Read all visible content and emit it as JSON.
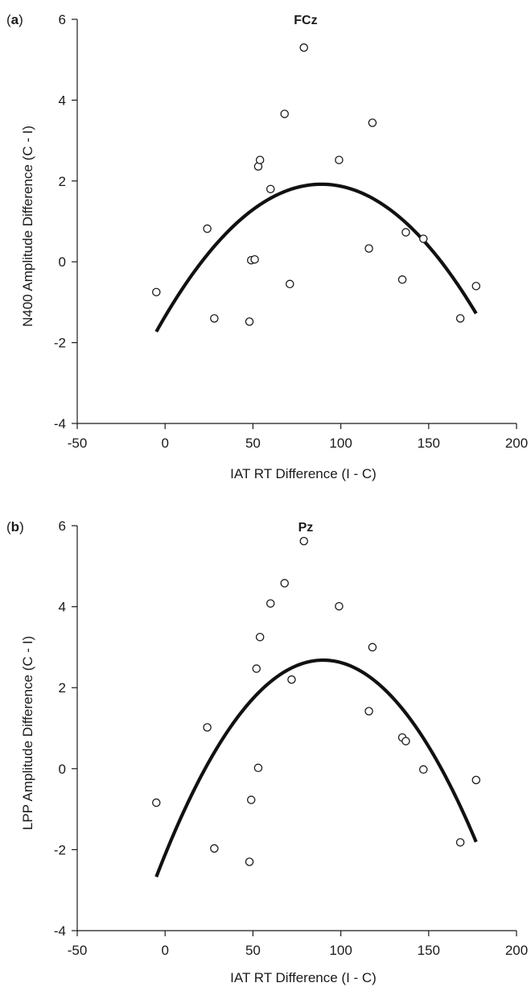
{
  "chart_data": [
    {
      "type": "scatter",
      "panel_label_prefix": "(",
      "panel_letter": "a",
      "panel_label_suffix": ")",
      "title": "FCz",
      "xlabel": "IAT RT Difference (I - C)",
      "ylabel": "N400 Amplitude Difference (C - I)",
      "xlim": [
        -50,
        200
      ],
      "ylim": [
        -4,
        6
      ],
      "xticks": [
        "-50",
        "0",
        "50",
        "100",
        "150",
        "200"
      ],
      "yticks": [
        "-4",
        "-2",
        "0",
        "2",
        "4",
        "6"
      ],
      "grid": false,
      "points": [
        {
          "x": -5,
          "y": -0.75
        },
        {
          "x": 24,
          "y": 0.82
        },
        {
          "x": 28,
          "y": -1.4
        },
        {
          "x": 48,
          "y": -1.48
        },
        {
          "x": 49,
          "y": 0.04
        },
        {
          "x": 51,
          "y": 0.06
        },
        {
          "x": 53,
          "y": 2.36
        },
        {
          "x": 54,
          "y": 2.52
        },
        {
          "x": 60,
          "y": 1.8
        },
        {
          "x": 68,
          "y": 3.66
        },
        {
          "x": 71,
          "y": -0.55
        },
        {
          "x": 79,
          "y": 5.3
        },
        {
          "x": 99,
          "y": 2.52
        },
        {
          "x": 116,
          "y": 0.33
        },
        {
          "x": 118,
          "y": 3.44
        },
        {
          "x": 135,
          "y": -0.44
        },
        {
          "x": 137,
          "y": 0.73
        },
        {
          "x": 147,
          "y": 0.57
        },
        {
          "x": 168,
          "y": -1.4
        },
        {
          "x": 177,
          "y": -0.6
        }
      ],
      "fit": {
        "type": "quadratic",
        "vertex_x": 89,
        "vertex_y": 1.92,
        "curvature": 0.000413,
        "x_range": [
          -5,
          177
        ]
      }
    },
    {
      "type": "scatter",
      "panel_label_prefix": "(",
      "panel_letter": "b",
      "panel_label_suffix": ")",
      "title": "Pz",
      "xlabel": "IAT RT Difference (I - C)",
      "ylabel": "LPP Amplitude Difference (C - I)",
      "xlim": [
        -50,
        200
      ],
      "ylim": [
        -4,
        6
      ],
      "xticks": [
        "-50",
        "0",
        "50",
        "100",
        "150",
        "200"
      ],
      "yticks": [
        "-4",
        "-2",
        "0",
        "2",
        "4",
        "6"
      ],
      "grid": false,
      "points": [
        {
          "x": -5,
          "y": -0.84
        },
        {
          "x": 24,
          "y": 1.02
        },
        {
          "x": 28,
          "y": -1.97
        },
        {
          "x": 48,
          "y": -2.3
        },
        {
          "x": 49,
          "y": -0.77
        },
        {
          "x": 52,
          "y": 2.47
        },
        {
          "x": 53,
          "y": 0.02
        },
        {
          "x": 54,
          "y": 3.25
        },
        {
          "x": 60,
          "y": 4.08
        },
        {
          "x": 68,
          "y": 4.58
        },
        {
          "x": 72,
          "y": 2.2
        },
        {
          "x": 79,
          "y": 5.62
        },
        {
          "x": 99,
          "y": 4.01
        },
        {
          "x": 116,
          "y": 1.42
        },
        {
          "x": 118,
          "y": 3.0
        },
        {
          "x": 135,
          "y": 0.77
        },
        {
          "x": 137,
          "y": 0.68
        },
        {
          "x": 147,
          "y": -0.02
        },
        {
          "x": 168,
          "y": -1.82
        },
        {
          "x": 177,
          "y": -0.28
        }
      ],
      "fit": {
        "type": "quadratic",
        "vertex_x": 90,
        "vertex_y": 2.68,
        "curvature": 0.000593,
        "x_range": [
          -5,
          177
        ]
      }
    }
  ]
}
